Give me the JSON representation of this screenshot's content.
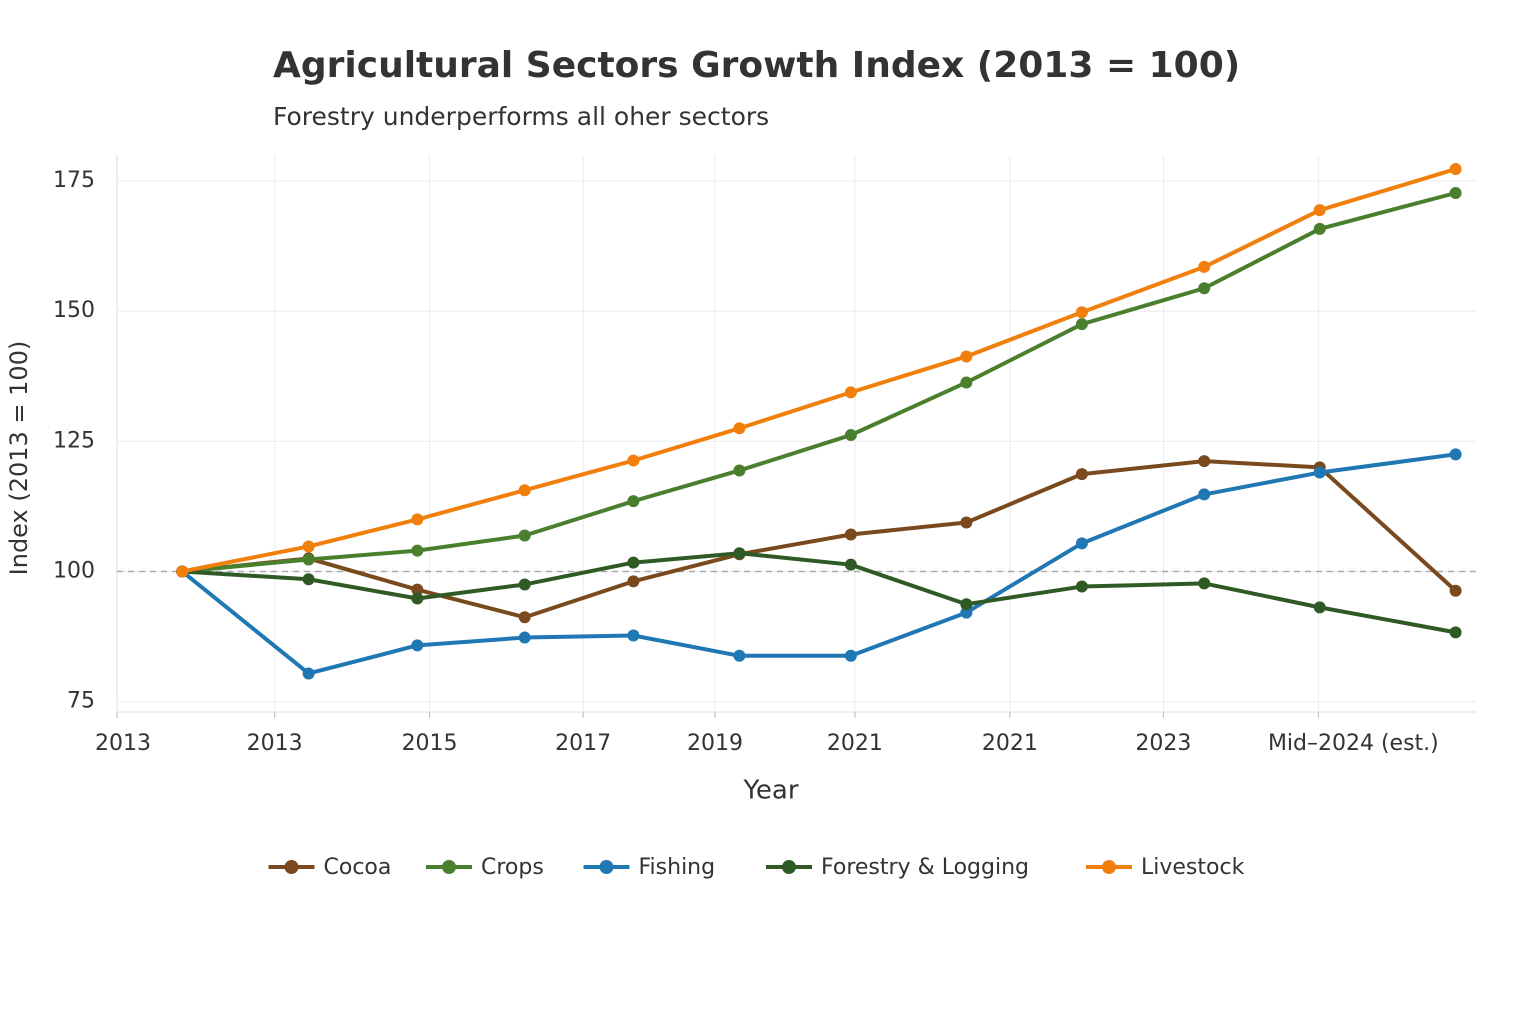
{
  "chart_data": {
    "type": "line",
    "title": "Agricultural Sectors Growth Index (2013 = 100)",
    "subtitle": "Forestry underperforms all oher sectors",
    "x_label": "Year",
    "y_label": "Index (2013 = 100)",
    "x": [
      0.48,
      1.41,
      2.21,
      3.0,
      3.8,
      4.58,
      5.4,
      6.25,
      7.1,
      8.0,
      8.85,
      9.85
    ],
    "xlim": [
      0,
      10
    ],
    "xticks": [
      {
        "value": 0,
        "label": "2013"
      },
      {
        "value": 1.16,
        "label": "2013"
      },
      {
        "value": 2.3,
        "label": "2015"
      },
      {
        "value": 3.43,
        "label": "2017"
      },
      {
        "value": 4.4,
        "label": "2019"
      },
      {
        "value": 5.43,
        "label": "2021"
      },
      {
        "value": 6.57,
        "label": "2021"
      },
      {
        "value": 7.7,
        "label": "2023"
      },
      {
        "value": 8.84,
        "label": "Mid–2024 (est.)"
      }
    ],
    "ylim": [
      73,
      180
    ],
    "yticks": [
      75,
      100,
      125,
      150,
      175
    ],
    "reference_line": 100,
    "grid": true,
    "legend": "bottom",
    "series": [
      {
        "name": "Cocoa",
        "color": "#7a4a1e",
        "values": [
          100,
          102.5,
          96.5,
          91.2,
          98.1,
          103.3,
          107.1,
          109.4,
          118.7,
          121.2,
          120,
          96.3
        ]
      },
      {
        "name": "Crops",
        "color": "#4a7f2e",
        "values": [
          100,
          102.3,
          104,
          106.9,
          113.5,
          119.4,
          126.2,
          136.3,
          147.5,
          154.4,
          165.8,
          172.7
        ]
      },
      {
        "name": "Fishing",
        "color": "#1f77b4",
        "values": [
          100,
          80.4,
          85.8,
          87.3,
          87.7,
          83.8,
          83.8,
          92.1,
          105.4,
          114.8,
          119,
          122.5
        ]
      },
      {
        "name": "Forestry & Logging",
        "color": "#2f5a26",
        "values": [
          100,
          98.5,
          94.8,
          97.5,
          101.7,
          103.5,
          101.3,
          93.7,
          97.1,
          97.7,
          93.1,
          88.3
        ]
      },
      {
        "name": "Livestock",
        "color": "#f07f0c",
        "values": [
          100,
          104.8,
          110,
          115.6,
          121.3,
          127.5,
          134.4,
          141.3,
          149.8,
          158.5,
          169.4,
          177.3
        ]
      }
    ]
  }
}
